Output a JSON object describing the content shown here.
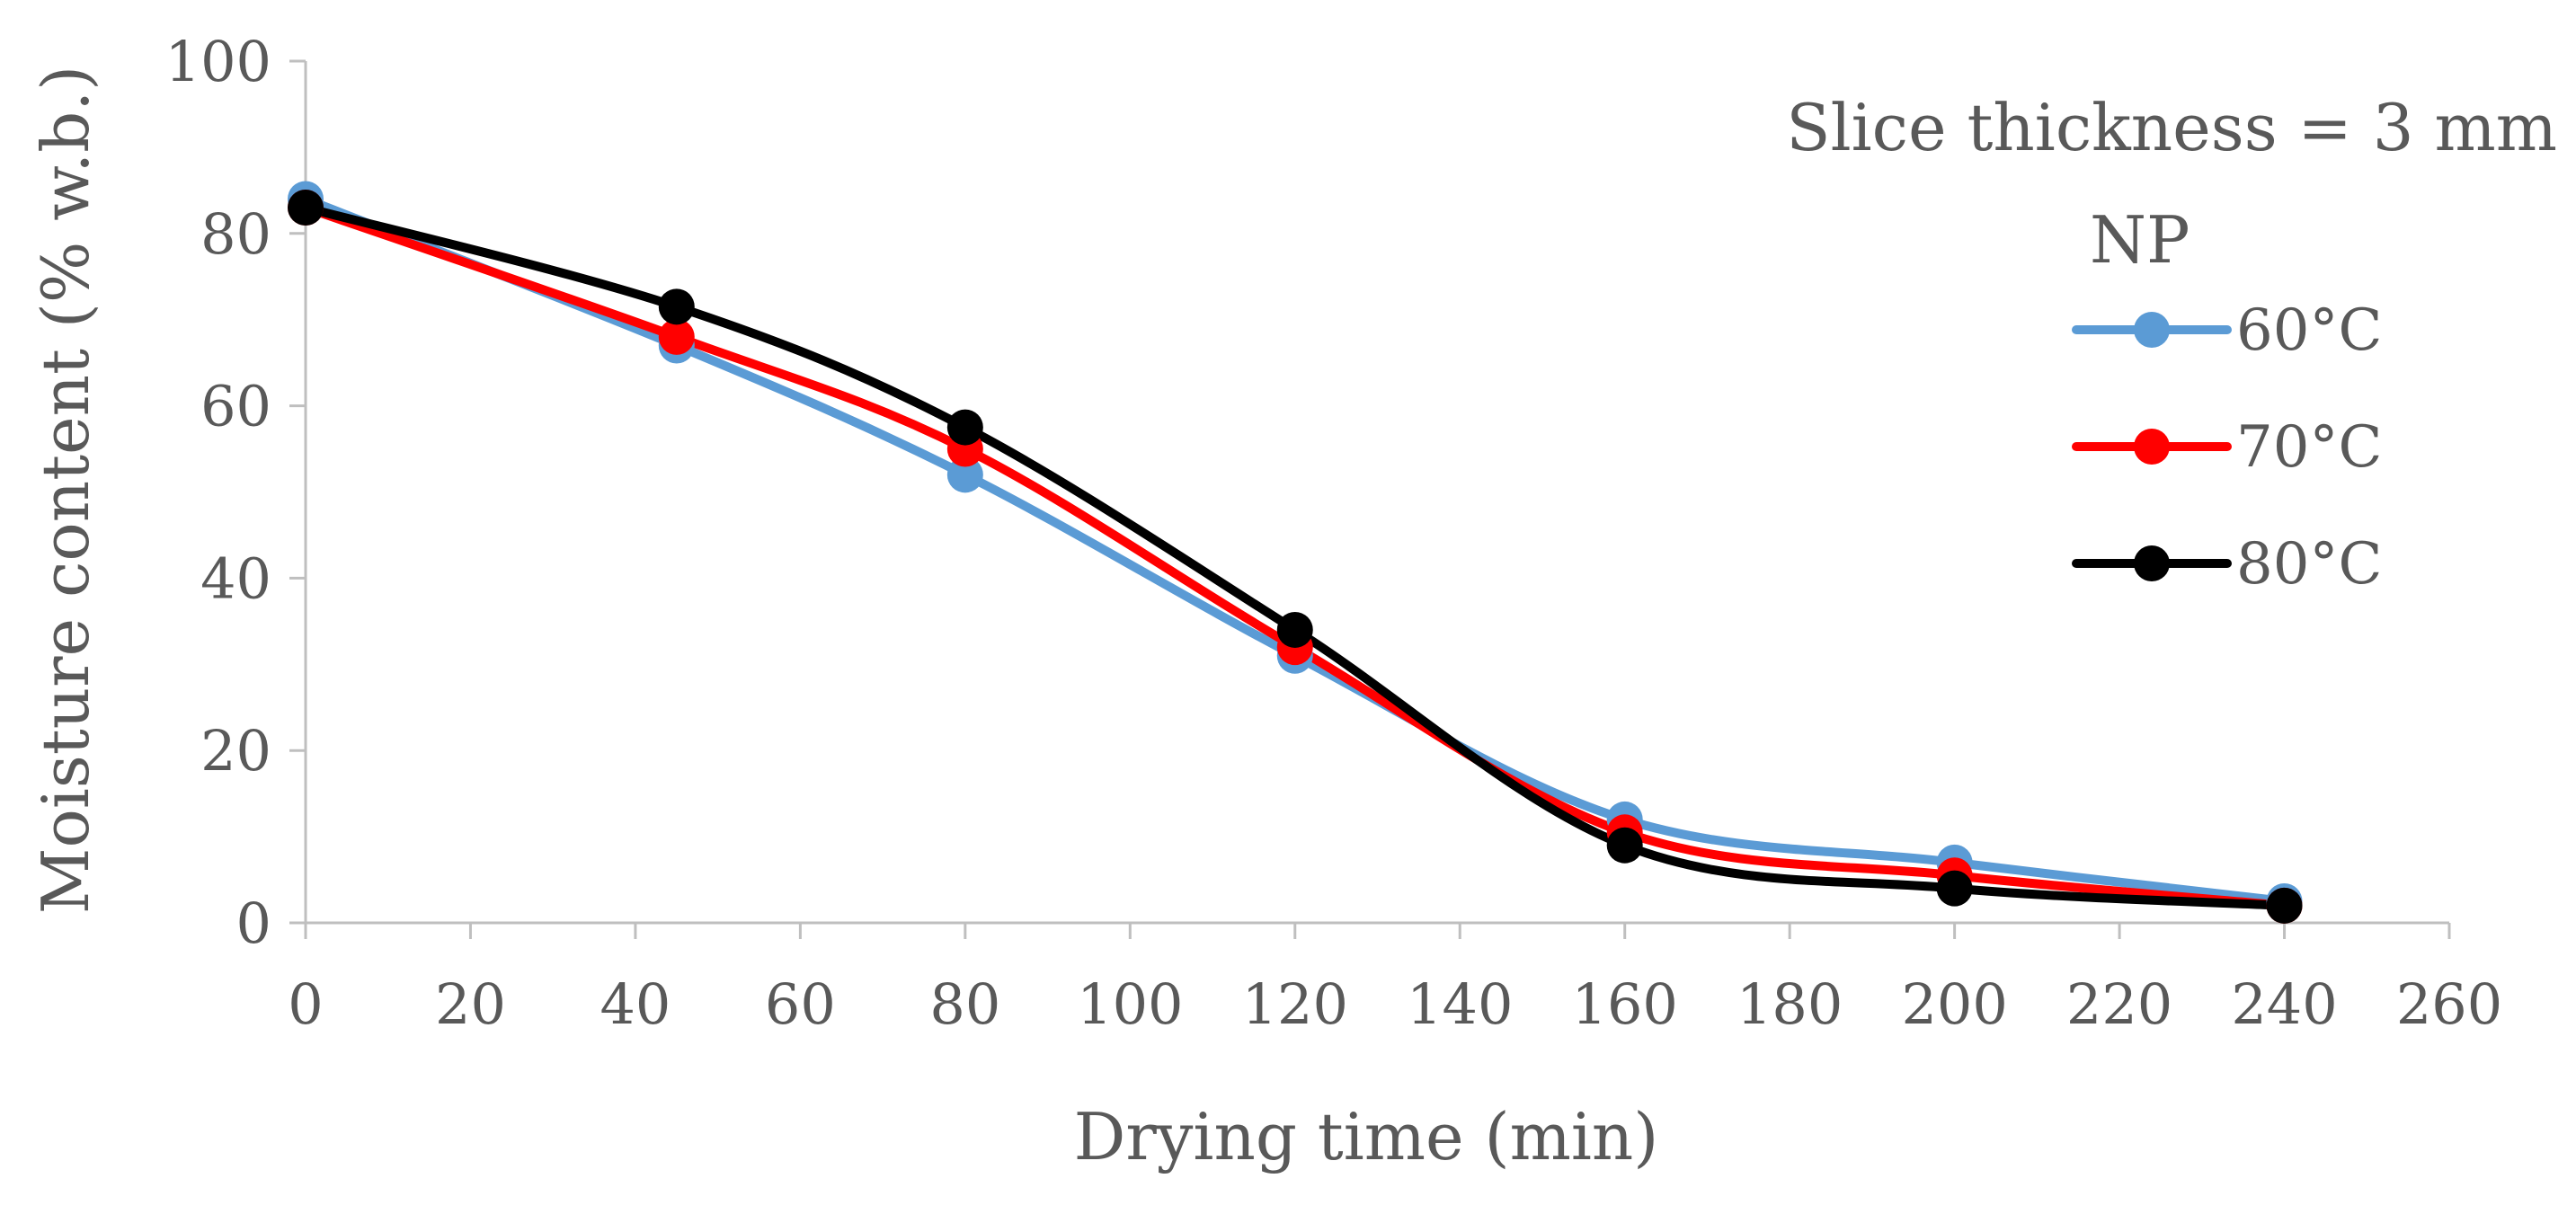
{
  "chart_data": {
    "type": "line",
    "title": "",
    "xlabel": "Drying time (min)",
    "ylabel": "Moisture content (% w.b.)",
    "xlim": [
      0,
      260
    ],
    "ylim": [
      0,
      100
    ],
    "x_ticks": [
      0,
      20,
      40,
      60,
      80,
      100,
      120,
      140,
      160,
      180,
      200,
      220,
      240,
      260
    ],
    "y_ticks": [
      0,
      20,
      40,
      60,
      80,
      100
    ],
    "grid": false,
    "smooth": true,
    "legend_position": "top-right",
    "annotations": [
      "Slice thickness = 3 mm",
      "NP"
    ],
    "x": [
      0,
      45,
      80,
      120,
      160,
      200,
      240
    ],
    "series": [
      {
        "name": "60°C",
        "color": "#5b9bd5",
        "values": [
          84,
          67,
          52,
          31,
          12,
          7,
          2.5
        ]
      },
      {
        "name": "70°C",
        "color": "#ff0000",
        "values": [
          83,
          68,
          55,
          32,
          10.5,
          5.5,
          2
        ]
      },
      {
        "name": "80°C",
        "color": "#000000",
        "values": [
          83,
          71.5,
          57.5,
          34,
          9,
          4,
          2
        ]
      }
    ]
  }
}
